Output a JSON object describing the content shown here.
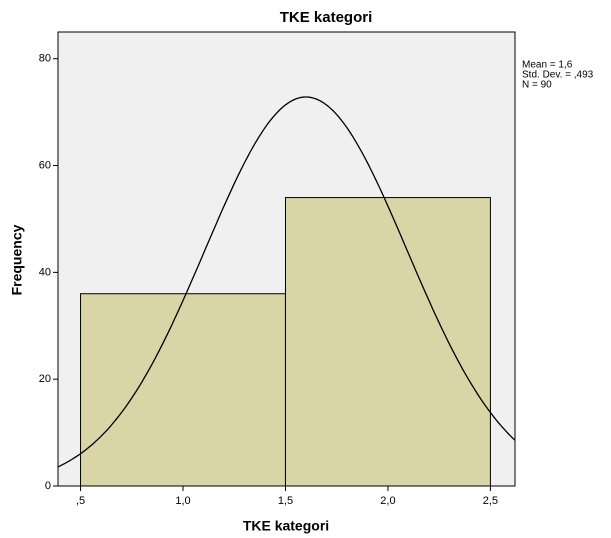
{
  "chart_data": {
    "type": "histogram",
    "title": "TKE kategori",
    "x_label": "TKE kategori",
    "y_label": "Frequency",
    "bins": [
      0.5,
      1.5,
      2.5
    ],
    "values": [
      36,
      54
    ],
    "color": "#d6d09a",
    "xlim": [
      0.39,
      2.62
    ],
    "ylim": [
      0,
      85
    ],
    "xticks": [
      {
        "value": 0.5,
        "label": ",5"
      },
      {
        "value": 1.0,
        "label": "1,0"
      },
      {
        "value": 1.5,
        "label": "1,5"
      },
      {
        "value": 2.0,
        "label": "2,0"
      },
      {
        "value": 2.5,
        "label": "2,5"
      }
    ],
    "yticks": [
      0,
      20,
      40,
      60,
      80
    ],
    "stats": [
      {
        "value": 1.6,
        "label": "Mean = 1,6"
      },
      {
        "value": 0.493,
        "label": "Std. Dev. = ,493"
      },
      {
        "value": 90,
        "label": "N = 90"
      }
    ]
  }
}
